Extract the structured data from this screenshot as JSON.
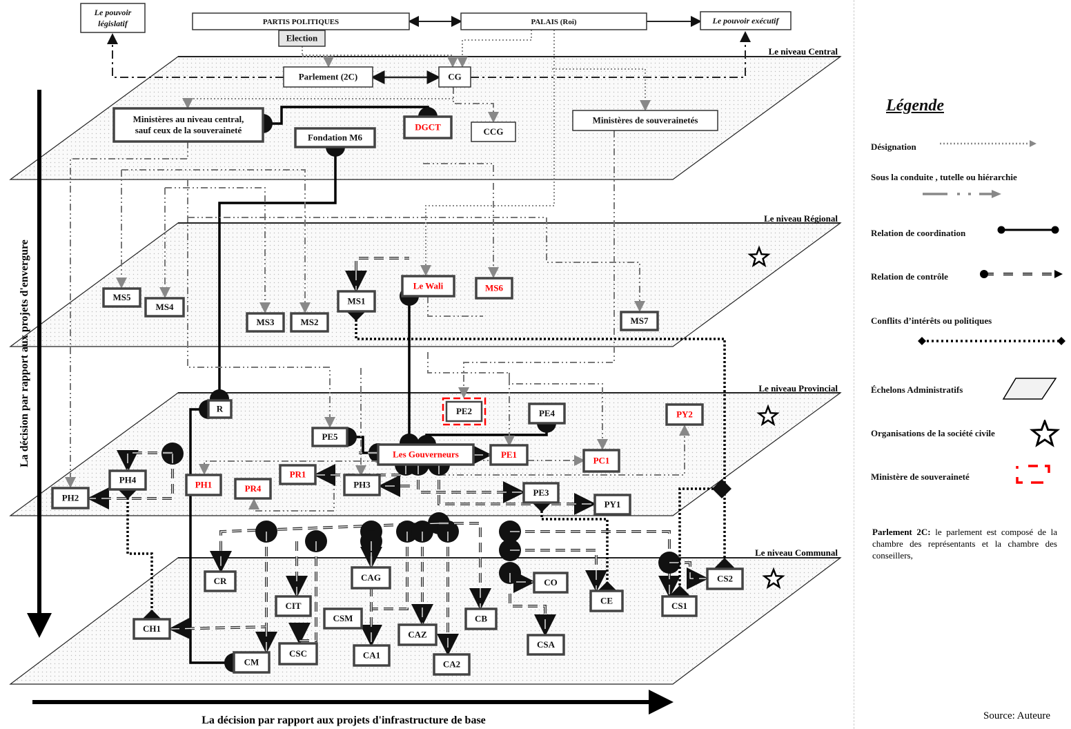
{
  "levels": {
    "central": "Le niveau Central",
    "regional": "Le niveau Régional",
    "provincial": "Le niveau Provincial",
    "communal": "Le niveau Communal"
  },
  "axes": {
    "vertical": "La décision par rapport aux projets d'envergure",
    "horizontal": "La décision par rapport aux projets d'infrastructure de base"
  },
  "nodes": [
    {
      "id": "legislatif",
      "label": "Le pouvoir législatif",
      "style": "italic"
    },
    {
      "id": "partis",
      "label": "PARTIS POLITIQUES",
      "style": "thin"
    },
    {
      "id": "palais",
      "label": "PALAIS (Roi)",
      "style": "thin"
    },
    {
      "id": "executif",
      "label": "Le pouvoir exécutif",
      "style": "italic"
    },
    {
      "id": "election",
      "label": "Election",
      "style": "gray"
    },
    {
      "id": "parlement",
      "label": "Parlement (2C)",
      "style": "thin"
    },
    {
      "id": "cg",
      "label": "CG",
      "style": "thin"
    },
    {
      "id": "ministeres_central",
      "label": "Ministères au niveau central, sauf ceux de la souveraineté",
      "style": "thick"
    },
    {
      "id": "dgct",
      "label": "DGCT",
      "style": "thick",
      "red": true
    },
    {
      "id": "ccg",
      "label": "CCG",
      "style": "thin"
    },
    {
      "id": "fondation",
      "label": "Fondation M6",
      "style": "thick"
    },
    {
      "id": "ministeres_souv",
      "label": "Ministères de souverainetés",
      "style": "thin"
    },
    {
      "id": "ms5",
      "label": "MS5",
      "style": "thick"
    },
    {
      "id": "ms4",
      "label": "MS4",
      "style": "thick"
    },
    {
      "id": "ms3",
      "label": "MS3",
      "style": "thick"
    },
    {
      "id": "ms2",
      "label": "MS2",
      "style": "thick"
    },
    {
      "id": "ms1",
      "label": "MS1",
      "style": "thick"
    },
    {
      "id": "wali",
      "label": "Le Wali",
      "style": "thick",
      "red": true
    },
    {
      "id": "ms6",
      "label": "MS6",
      "style": "thick",
      "red": true
    },
    {
      "id": "ms7",
      "label": "MS7",
      "style": "thick"
    },
    {
      "id": "r",
      "label": "R",
      "style": "thick"
    },
    {
      "id": "pe2",
      "label": "PE2",
      "style": "souv",
      "red": false
    },
    {
      "id": "pe4",
      "label": "PE4",
      "style": "thick"
    },
    {
      "id": "py2",
      "label": "PY2",
      "style": "thick",
      "red": true
    },
    {
      "id": "pe5",
      "label": "PE5",
      "style": "thick"
    },
    {
      "id": "gouverneurs",
      "label": "Les Gouverneurs",
      "style": "thick",
      "red": true
    },
    {
      "id": "pe1",
      "label": "PE1",
      "style": "thick",
      "red": true
    },
    {
      "id": "pc1",
      "label": "PC1",
      "style": "thick",
      "red": true
    },
    {
      "id": "ph4",
      "label": "PH4",
      "style": "thick"
    },
    {
      "id": "pr1",
      "label": "PR1",
      "style": "thick",
      "red": true
    },
    {
      "id": "ph1",
      "label": "PH1",
      "style": "thick",
      "red": true
    },
    {
      "id": "pr4",
      "label": "PR4",
      "style": "thick",
      "red": true
    },
    {
      "id": "ph3",
      "label": "PH3",
      "style": "thick"
    },
    {
      "id": "pe3",
      "label": "PE3",
      "style": "thick"
    },
    {
      "id": "py1",
      "label": "PY1",
      "style": "thick"
    },
    {
      "id": "ph2",
      "label": "PH2",
      "style": "thick"
    },
    {
      "id": "cr",
      "label": "CR",
      "style": "thick"
    },
    {
      "id": "cag",
      "label": "CAG",
      "style": "thick"
    },
    {
      "id": "co",
      "label": "CO",
      "style": "thick"
    },
    {
      "id": "ce",
      "label": "CE",
      "style": "thick"
    },
    {
      "id": "cs2",
      "label": "CS2",
      "style": "thick"
    },
    {
      "id": "cit",
      "label": "CIT",
      "style": "thick"
    },
    {
      "id": "csm",
      "label": "CSM",
      "style": "thick"
    },
    {
      "id": "cb",
      "label": "CB",
      "style": "thick"
    },
    {
      "id": "cs1",
      "label": "CS1",
      "style": "thick"
    },
    {
      "id": "caz",
      "label": "CAZ",
      "style": "thick"
    },
    {
      "id": "csa",
      "label": "CSA",
      "style": "thick"
    },
    {
      "id": "ch1",
      "label": "CH1",
      "style": "thick"
    },
    {
      "id": "csc",
      "label": "CSC",
      "style": "thick"
    },
    {
      "id": "ca1",
      "label": "CA1",
      "style": "thick"
    },
    {
      "id": "cm",
      "label": "CM",
      "style": "thick"
    },
    {
      "id": "ca2",
      "label": "CA2",
      "style": "thick"
    }
  ],
  "legend": {
    "title": "Légende",
    "items": [
      {
        "label": "Désignation",
        "icon": "dotted-arrow"
      },
      {
        "label": "Sous la conduite , tutelle ou hiérarchie",
        "icon": "dash-dot-arrow"
      },
      {
        "label": "Relation de coordination",
        "icon": "solid-line-dots"
      },
      {
        "label": "Relation de contrôle",
        "icon": "double-dash-arrow"
      },
      {
        "label": "Conflits d’intérêts ou politiques",
        "icon": "dotted-diamonds"
      },
      {
        "label": "Échelons Administratifs",
        "icon": "dotted-parallelogram"
      },
      {
        "label": "Organisations de la société civile",
        "icon": "star"
      },
      {
        "label": "Ministère de souveraineté",
        "icon": "red-dashed-box"
      }
    ],
    "note_term": "Parlement 2C:",
    "note_text": " le parlement est composé de la chambre des représentants et la chambre des conseillers,"
  },
  "source": "Source: Auteure",
  "colors": {
    "red": "#ff0000",
    "line": "#111111",
    "gray": "#888888",
    "box_border": "#444444"
  }
}
